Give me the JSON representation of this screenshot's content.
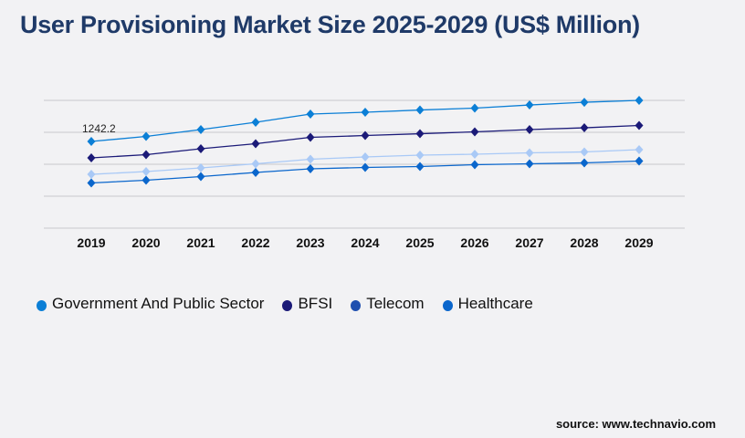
{
  "chart_data": {
    "type": "line",
    "title": "User Provisioning Market Size 2025-2029 (US$ Million)",
    "categories": [
      "2019",
      "2020",
      "2021",
      "2022",
      "2023",
      "2024",
      "2025",
      "2026",
      "2027",
      "2028",
      "2029"
    ],
    "ylim": [
      0,
      1831
    ],
    "grid": true,
    "legend_position": "bottom",
    "series": [
      {
        "name": "Government And Public Sector",
        "color": "#0b7fd6",
        "marker_color": "#0b7fd6",
        "values": [
          1242.2,
          1314,
          1412,
          1517,
          1635,
          1661,
          1693,
          1720,
          1765,
          1804,
          1831
        ]
      },
      {
        "name": "BFSI",
        "color": "#1b1a78",
        "marker_color": "#1b1a78",
        "values": [
          1007,
          1053,
          1138,
          1210,
          1301,
          1327,
          1353,
          1380,
          1412,
          1438,
          1471
        ]
      },
      {
        "name": "Telecom",
        "color": "#a9c9f6",
        "marker_color": "#1f4faf",
        "values": [
          771,
          811,
          863,
          922,
          987,
          1020,
          1046,
          1059,
          1079,
          1092,
          1125
        ]
      },
      {
        "name": "Healthcare",
        "color": "#0a66cc",
        "marker_color": "#0a66cc",
        "values": [
          647,
          687,
          739,
          798,
          850,
          870,
          883,
          909,
          922,
          935,
          961
        ]
      }
    ],
    "annotations": [
      {
        "series": "Government And Public Sector",
        "x": "2019",
        "label": "1242.2"
      }
    ]
  },
  "source": "source: www.technavio.com"
}
